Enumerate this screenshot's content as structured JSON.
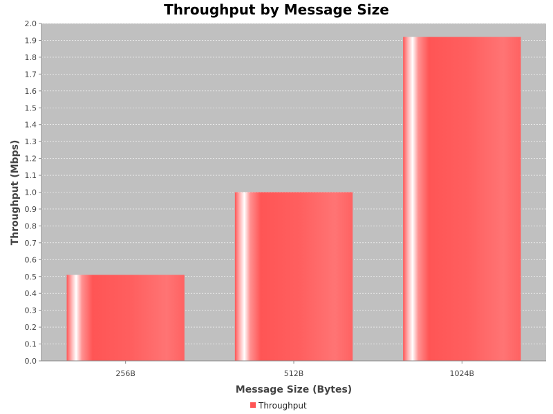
{
  "chart_data": {
    "type": "bar",
    "title": "Throughput by Message Size",
    "xlabel": "Message Size (Bytes)",
    "ylabel": "Throughput (Mbps)",
    "categories": [
      "256B",
      "512B",
      "1024B"
    ],
    "series": [
      {
        "name": "Throughput",
        "values": [
          0.51,
          1.0,
          1.92
        ]
      }
    ],
    "ylim": [
      0,
      2.0
    ],
    "ytick_step": 0.1,
    "grid": true,
    "legend_position": "bottom",
    "colors": {
      "bar": "#ff5555",
      "plot_background": "#c0c0c0",
      "gridline": "#ffffff"
    }
  }
}
